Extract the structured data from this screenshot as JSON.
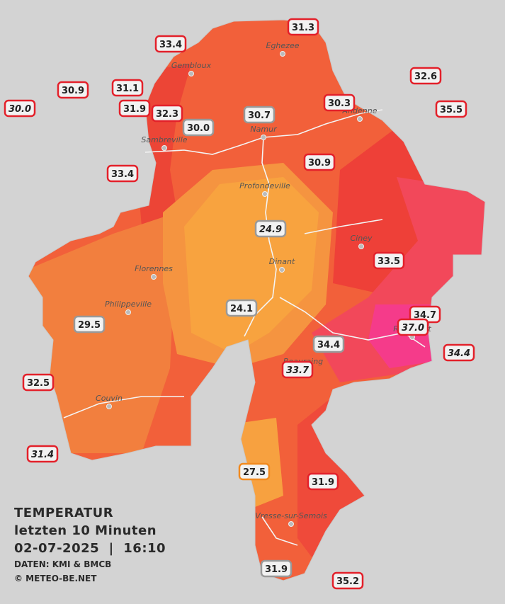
{
  "stations": [
    "31.3",
    "33.4",
    "30.9",
    "31.1",
    "30.0",
    "31.9",
    "32.3",
    "30.0",
    "30.7",
    "30.3",
    "32.6",
    "35.5",
    "33.4",
    "30.9",
    "24.9",
    "33.5",
    "29.5",
    "24.1",
    "34.7",
    "37.0",
    "34.4",
    "34.4",
    "33.7",
    "32.5",
    "31.4",
    "27.5",
    "31.9",
    "31.9",
    "35.2"
  ],
  "cities": [
    "Eghezee",
    "Gembloux",
    "Andenne",
    "Namur",
    "Sambreville",
    "Profondeville",
    "Ciney",
    "Dinant",
    "Florennes",
    "Philippeville",
    "Beauraing",
    "Rochefort",
    "Couvin",
    "Vresse-sur-Semois"
  ],
  "caption": {
    "title": "TEMPERATUR",
    "subtitle": "letzten 10 Minuten",
    "datetime": "02-07-2025  |  16:10",
    "source": "DATEN: KMI & BMCB",
    "copyright": "© METEO-BE.NET"
  }
}
